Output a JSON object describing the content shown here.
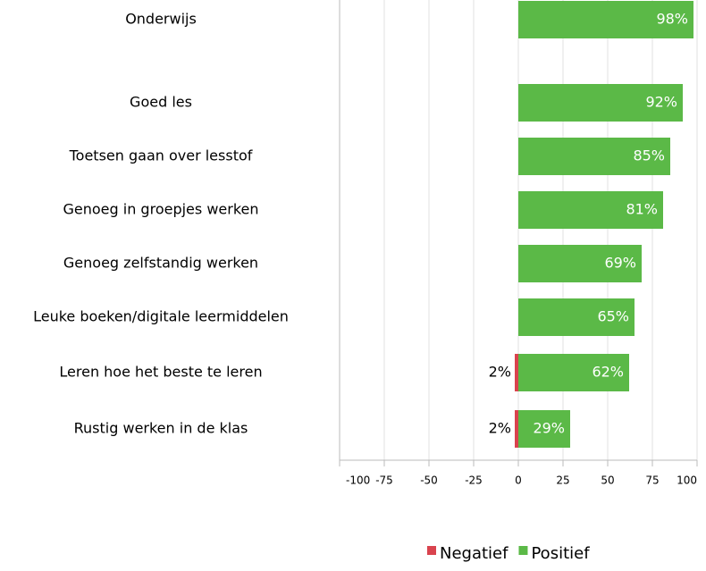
{
  "chart_data": {
    "type": "diverging-bar",
    "categories": [
      "Onderwijs",
      "Goed les",
      "Toetsen gaan over lesstof",
      "Genoeg in groepjes werken",
      "Genoeg zelfstandig werken",
      "Leuke boeken/digitale leermiddelen",
      "Leren hoe het beste te leren",
      "Rustig werken in de klas"
    ],
    "series": [
      {
        "name": "Negatief",
        "color": "#d9434e",
        "values": [
          null,
          null,
          null,
          null,
          null,
          null,
          -2,
          -2
        ],
        "value_labels": [
          null,
          null,
          null,
          null,
          null,
          null,
          "2%",
          "2%"
        ]
      },
      {
        "name": "Positief",
        "color": "#5bb947",
        "values": [
          98,
          92,
          85,
          81,
          69,
          65,
          62,
          29
        ],
        "value_labels": [
          "98%",
          "92%",
          "85%",
          "81%",
          "69%",
          "65%",
          "62%",
          "29%"
        ]
      }
    ],
    "xlim": [
      -100,
      100
    ],
    "xticks": [
      -100,
      -75,
      -50,
      -25,
      0,
      25,
      50,
      75,
      100
    ],
    "grid": true,
    "legend": "bottom"
  }
}
